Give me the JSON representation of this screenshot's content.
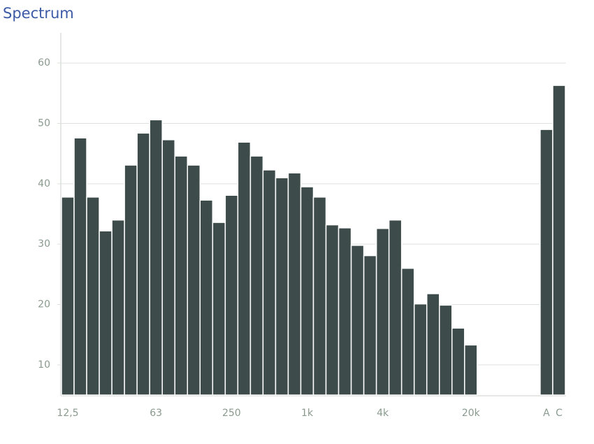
{
  "chart_data": {
    "type": "bar",
    "title": "Spectrum",
    "categories": [
      "12,5",
      null,
      null,
      null,
      null,
      null,
      null,
      "63",
      null,
      null,
      null,
      null,
      null,
      "250",
      null,
      null,
      null,
      null,
      null,
      "1k",
      null,
      null,
      null,
      null,
      null,
      "4k",
      null,
      null,
      null,
      null,
      null,
      null,
      "20k",
      null,
      null,
      null,
      null,
      null,
      "A",
      "C"
    ],
    "values": [
      37.8,
      47.6,
      37.8,
      32.2,
      34.0,
      43.1,
      48.4,
      50.6,
      47.3,
      44.6,
      43.1,
      37.3,
      33.6,
      38.1,
      46.9,
      44.6,
      42.3,
      41.0,
      41.8,
      39.5,
      37.8,
      33.2,
      32.7,
      29.8,
      28.1,
      32.6,
      34.0,
      26.0,
      20.1,
      21.8,
      19.9,
      16.1,
      13.3,
      null,
      null,
      null,
      null,
      null,
      49.0,
      56.3
    ],
    "color": "#3d4b4b",
    "ylim": [
      5,
      65
    ],
    "yticks": [
      10,
      20,
      30,
      40,
      50,
      60
    ],
    "grid": true
  }
}
